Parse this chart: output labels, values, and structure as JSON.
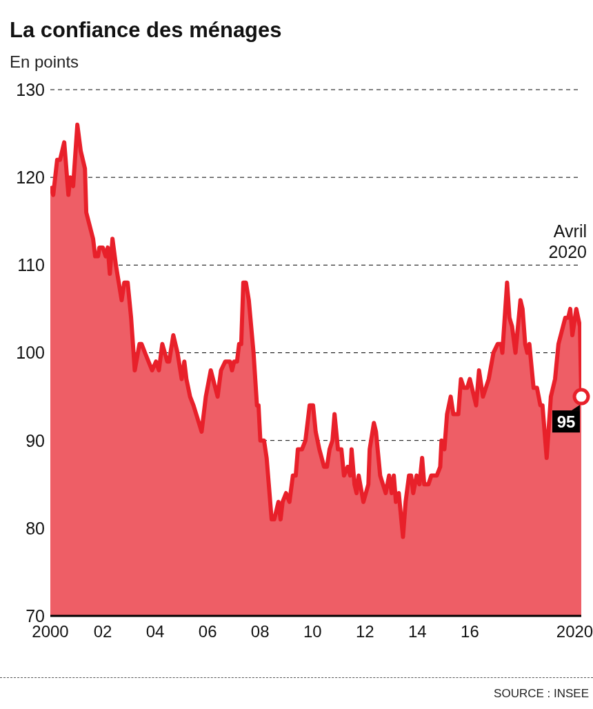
{
  "chart_data": {
    "type": "area",
    "title": "La confiance des ménages",
    "subtitle": "En points",
    "x": [
      2000,
      2000.11,
      2000.26,
      2000.37,
      2000.53,
      2000.69,
      2000.76,
      2000.87,
      2001.03,
      2001.16,
      2001.32,
      2001.37,
      2001.63,
      2001.71,
      2001.82,
      2001.87,
      2002,
      2002.11,
      2002.19,
      2002.27,
      2002.37,
      2002.5,
      2002.72,
      2002.82,
      2002.95,
      2003.08,
      2003.22,
      2003.4,
      2003.48,
      2003.61,
      2003.88,
      2004.03,
      2004.14,
      2004.27,
      2004.46,
      2004.53,
      2004.69,
      2004.85,
      2005.01,
      2005.11,
      2005.19,
      2005.33,
      2005.46,
      2005.77,
      2005.93,
      2006.12,
      2006.38,
      2006.51,
      2006.67,
      2006.85,
      2006.93,
      2007.01,
      2007.12,
      2007.2,
      2007.28,
      2007.36,
      2007.46,
      2007.57,
      2007.75,
      2007.88,
      2007.94,
      2008.01,
      2008.15,
      2008.25,
      2008.44,
      2008.54,
      2008.7,
      2008.78,
      2008.86,
      2008.99,
      2009.12,
      2009.25,
      2009.36,
      2009.44,
      2009.6,
      2009.73,
      2009.89,
      2010.02,
      2010.12,
      2010.26,
      2010.44,
      2010.55,
      2010.65,
      2010.76,
      2010.84,
      2010.97,
      2011.1,
      2011.2,
      2011.34,
      2011.44,
      2011.49,
      2011.6,
      2011.68,
      2011.76,
      2011.94,
      2012.13,
      2012.18,
      2012.34,
      2012.42,
      2012.58,
      2012.79,
      2012.92,
      2013.02,
      2013.1,
      2013.18,
      2013.29,
      2013.45,
      2013.55,
      2013.68,
      2013.76,
      2013.84,
      2013.97,
      2014.08,
      2014.18,
      2014.26,
      2014.42,
      2014.53,
      2014.74,
      2014.87,
      2014.92,
      2015.03,
      2015.13,
      2015.27,
      2015.37,
      2015.56,
      2015.66,
      2015.77,
      2015.9,
      2016,
      2016.24,
      2016.35,
      2016.5,
      2016.72,
      2016.9,
      2017.06,
      2017.19,
      2017.24,
      2017.42,
      2017.51,
      2017.61,
      2017.74,
      2017.93,
      2018.01,
      2018.11,
      2018.19,
      2018.27,
      2018.43,
      2018.56,
      2018.69,
      2018.77,
      2018.93,
      2019.09,
      2019.25,
      2019.38,
      2019.64,
      2019.75,
      2019.83,
      2019.91,
      2020.06,
      2020.2,
      2020.25
    ],
    "series": [
      {
        "color": "#e8202a",
        "values": [
          119,
          118,
          122,
          122,
          124,
          118,
          120,
          119,
          126,
          123,
          121,
          116,
          113,
          111,
          111,
          112,
          112,
          111,
          112,
          109,
          113,
          110,
          106,
          108,
          108,
          104,
          98,
          101,
          101,
          100,
          98,
          99,
          98,
          101,
          99,
          99,
          102,
          100,
          97,
          99,
          97,
          95,
          94,
          91,
          95,
          98,
          95,
          98,
          99,
          99,
          98,
          99,
          99,
          101,
          101,
          108,
          108,
          106,
          100,
          94,
          94,
          90,
          90,
          88,
          81,
          81,
          83,
          81,
          83,
          84,
          83,
          86,
          86,
          89,
          89,
          90,
          94,
          94,
          91,
          89,
          87,
          87,
          89,
          90,
          93,
          89,
          89,
          86,
          87,
          86,
          89,
          85,
          84,
          86,
          83,
          85,
          89,
          92,
          91,
          86,
          84,
          86,
          84,
          86,
          83,
          84,
          79,
          83,
          86,
          86,
          84,
          86,
          85,
          88,
          85,
          85,
          86,
          86,
          87,
          90,
          89,
          93,
          95,
          93,
          93,
          97,
          96,
          96,
          97,
          94,
          98,
          95,
          97,
          100,
          101,
          101,
          100,
          108,
          104,
          103,
          100,
          106,
          105,
          101,
          100,
          101,
          96,
          96,
          94,
          94,
          88,
          95,
          97,
          101,
          104,
          104,
          105,
          102,
          105,
          103,
          95
        ],
        "value_labels": [
          null,
          null,
          null,
          null,
          null,
          null,
          null,
          null,
          null,
          null,
          null,
          null,
          null,
          null,
          null,
          null,
          null,
          null,
          null,
          null,
          null,
          null,
          null,
          null,
          null,
          null,
          null,
          null,
          null,
          null,
          null,
          null,
          null,
          null,
          null,
          null,
          null,
          null,
          null,
          null,
          null,
          null,
          null,
          null,
          null,
          null,
          null,
          null,
          null,
          null,
          null,
          null,
          null,
          null,
          null,
          null,
          null,
          null,
          null,
          null,
          null,
          null,
          null,
          null,
          null,
          null,
          null,
          null,
          null,
          null,
          null,
          null,
          null,
          null,
          null,
          null,
          null,
          null,
          null,
          null,
          null,
          null,
          null,
          null,
          null,
          null,
          null,
          null,
          null,
          null,
          null,
          null,
          null,
          null,
          null,
          null,
          null,
          null,
          null,
          null,
          null,
          null,
          null,
          null,
          null,
          null,
          null,
          null,
          null,
          null,
          null,
          null,
          null,
          null,
          null,
          null,
          null,
          null,
          null,
          null,
          null,
          null,
          null,
          null,
          null,
          null,
          null,
          null,
          null,
          null,
          null,
          null,
          null,
          null,
          null,
          null,
          null,
          null,
          null,
          null,
          null,
          null,
          null,
          null,
          null,
          null,
          null,
          null,
          null,
          null,
          null,
          null,
          null,
          null,
          null,
          null,
          null,
          null,
          null,
          null,
          "95"
        ]
      }
    ],
    "xlim": [
      2000,
      2020.25
    ],
    "xticks": [
      {
        "value": 2000,
        "label": "2000"
      },
      {
        "value": 2002,
        "label": "02"
      },
      {
        "value": 2004,
        "label": "04"
      },
      {
        "value": 2006,
        "label": "06"
      },
      {
        "value": 2008,
        "label": "08"
      },
      {
        "value": 2010,
        "label": "10"
      },
      {
        "value": 2012,
        "label": "12"
      },
      {
        "value": 2014,
        "label": "14"
      },
      {
        "value": 2016,
        "label": "16"
      },
      {
        "value": 2020,
        "label": "2020"
      }
    ],
    "ylim": [
      70,
      130
    ],
    "yticks": [
      70,
      80,
      90,
      100,
      110,
      120,
      130
    ],
    "grid": "y",
    "marker": "none",
    "line_style": "solid",
    "annotations": [
      "Avril 2020",
      "SOURCE : INSEE"
    ]
  }
}
